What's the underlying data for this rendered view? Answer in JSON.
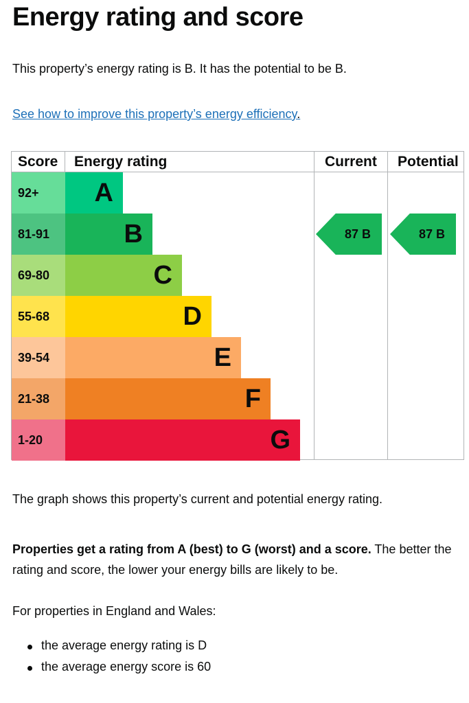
{
  "title": "Energy rating and score",
  "intro": "This property’s energy rating is B. It has the potential to be B.",
  "link_text": "See how to improve this property’s energy efficiency",
  "link_suffix": ".",
  "table_headers": {
    "score": "Score",
    "rating": "Energy rating",
    "current": "Current",
    "potential": "Potential"
  },
  "chart_data": {
    "type": "bar",
    "categories": [
      "A",
      "B",
      "C",
      "D",
      "E",
      "F",
      "G"
    ],
    "score_ranges": [
      "92+",
      "81-91",
      "69-80",
      "55-68",
      "39-54",
      "21-38",
      "1-20"
    ],
    "band_colors": [
      "#00c781",
      "#19b459",
      "#8dce46",
      "#ffd500",
      "#fcaa65",
      "#ef8023",
      "#e9153b"
    ],
    "score_cell_colors": [
      "#66dd99",
      "#4dc381",
      "#a9dd7b",
      "#ffe34d",
      "#fdc69a",
      "#f3a668",
      "#f0718a"
    ],
    "current": {
      "score": "87",
      "rating": "B",
      "color": "#19b459"
    },
    "potential": {
      "score": "87",
      "rating": "B",
      "color": "#19b459"
    }
  },
  "current_label": "87 B",
  "potential_label": "87 B",
  "graph_note": "The graph shows this property’s current and potential energy rating.",
  "scale_bold": "Properties get a rating from A (best) to G (worst) and a score.",
  "scale_rest": " The better the rating and score, the lower your energy bills are likely to be.",
  "region_note": "For properties in England and Wales:",
  "bullets": [
    "the average energy rating is D",
    "the average energy score is 60"
  ]
}
